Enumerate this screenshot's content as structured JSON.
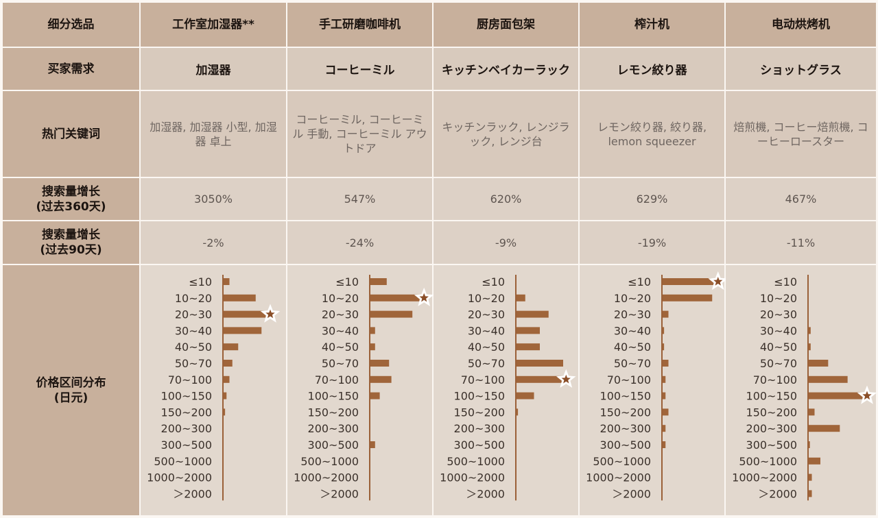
{
  "headers": {
    "col0": "细分选品",
    "products": [
      "工作室加湿器**",
      "手工研磨咖啡机",
      "厨房面包架",
      "榨汁机",
      "电动烘烤机"
    ]
  },
  "rows": {
    "buyer_need": {
      "label": "买家需求",
      "values": [
        "加湿器",
        "コーヒーミル",
        "キッチンベイカーラック",
        "レモン絞り器",
        "ショットグラス"
      ]
    },
    "hot_keywords": {
      "label": "热门关键词",
      "values": [
        "加湿器, 加湿器 小型, 加湿器 卓上",
        "コーヒーミル, コーヒーミル 手動, コーヒーミル アウトドア",
        "キッチンラック, レンジラック, レンジ台",
        "レモン絞り器, 絞り器, lemon squeezer",
        "焙煎機, コーヒー焙煎機, コーヒーロースター"
      ]
    },
    "growth_360": {
      "label_line1": "搜索量增长",
      "label_line2": "(过去360天)",
      "values": [
        "3050%",
        "547%",
        "620%",
        "629%",
        "467%"
      ]
    },
    "growth_90": {
      "label_line1": "搜索量增长",
      "label_line2": "(过去90天)",
      "values": [
        "-2%",
        "-24%",
        "-9%",
        "-19%",
        "-11%"
      ]
    },
    "price_dist": {
      "label_line1": "价格区间分布",
      "label_line2": "(日元)"
    }
  },
  "chart_data": [
    {
      "type": "bar",
      "orientation": "horizontal",
      "categories": [
        "≤10",
        "10~20",
        "20~30",
        "30~40",
        "40~50",
        "50~70",
        "70~100",
        "100~150",
        "150~200",
        "200~300",
        "300~500",
        "500~1000",
        "1000~2000",
        "＞2000"
      ],
      "values": [
        2,
        11,
        16,
        13,
        5,
        3,
        2,
        1,
        0.5,
        0,
        0,
        0,
        0,
        0
      ],
      "highlight_index": 2,
      "xlim": [
        0,
        20
      ]
    },
    {
      "type": "bar",
      "orientation": "horizontal",
      "categories": [
        "≤10",
        "10~20",
        "20~30",
        "30~40",
        "40~50",
        "50~70",
        "70~100",
        "100~150",
        "150~200",
        "200~300",
        "300~500",
        "500~1000",
        "1000~2000",
        "＞2000"
      ],
      "values": [
        7,
        23,
        18,
        2,
        2,
        8,
        9,
        4,
        0,
        0,
        2,
        0,
        0,
        0
      ],
      "highlight_index": 1,
      "xlim": [
        0,
        25
      ]
    },
    {
      "type": "bar",
      "orientation": "horizontal",
      "categories": [
        "≤10",
        "10~20",
        "20~30",
        "30~40",
        "40~50",
        "50~70",
        "70~100",
        "100~150",
        "150~200",
        "200~300",
        "300~500",
        "500~1000",
        "1000~2000",
        "＞2000"
      ],
      "values": [
        0,
        3,
        11,
        8,
        8,
        16,
        17,
        6,
        0.5,
        0,
        0,
        0,
        0,
        0
      ],
      "highlight_index": 6,
      "xlim": [
        0,
        20
      ]
    },
    {
      "type": "bar",
      "orientation": "horizontal",
      "categories": [
        "≤10",
        "10~20",
        "20~30",
        "30~40",
        "40~50",
        "50~70",
        "70~100",
        "100~150",
        "150~200",
        "200~300",
        "300~500",
        "500~1000",
        "1000~2000",
        "＞2000"
      ],
      "values": [
        19,
        17,
        2,
        0.5,
        0.5,
        2,
        1,
        1,
        2,
        1,
        1,
        0,
        0,
        0
      ],
      "highlight_index": 0,
      "xlim": [
        0,
        20
      ]
    },
    {
      "type": "bar",
      "orientation": "horizontal",
      "categories": [
        "≤10",
        "10~20",
        "20~30",
        "30~40",
        "40~50",
        "50~70",
        "70~100",
        "100~150",
        "150~200",
        "200~300",
        "300~500",
        "500~1000",
        "1000~2000",
        "＞2000"
      ],
      "values": [
        0,
        0,
        0,
        0.5,
        0.5,
        5,
        10,
        15,
        1.5,
        8,
        0.3,
        3,
        0.8,
        0.8
      ],
      "highlight_index": 7,
      "xlim": [
        0,
        15
      ]
    }
  ],
  "colors": {
    "bar": "#a0653a",
    "axis": "#9a6038",
    "star_fill": "#8a4e28",
    "star_stroke": "#ffffff"
  }
}
